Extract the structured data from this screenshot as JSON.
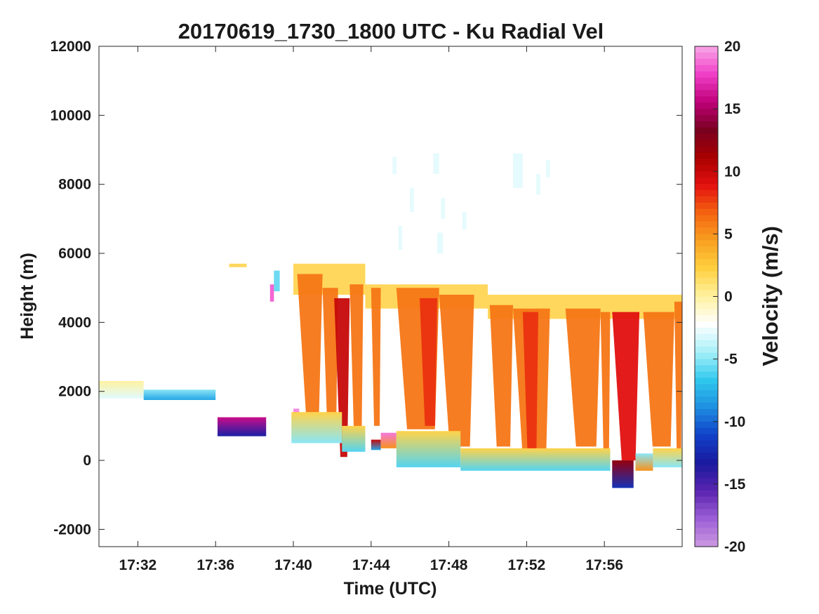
{
  "chart_data": {
    "type": "heatmap",
    "title": "20170619_1730_1800 UTC - Ku Radial Vel",
    "xlabel": "Time (UTC)",
    "ylabel": "Height (m)",
    "x_ticks": [
      "17:32",
      "17:36",
      "17:40",
      "17:44",
      "17:48",
      "17:52",
      "17:56"
    ],
    "x_tick_minutes": [
      2,
      6,
      10,
      14,
      18,
      22,
      26
    ],
    "xlim_minutes": [
      0,
      30
    ],
    "y_ticks": [
      "12000",
      "10000",
      "8000",
      "6000",
      "4000",
      "2000",
      "0",
      "-2000"
    ],
    "y_tick_values": [
      12000,
      10000,
      8000,
      6000,
      4000,
      2000,
      0,
      -2000
    ],
    "ylim": [
      -2500,
      12000
    ],
    "colorbar": {
      "label": "Velocity (m/s)",
      "range": [
        -20,
        20
      ],
      "ticks": [
        "20",
        "15",
        "10",
        "5",
        "0",
        "-5",
        "-10",
        "-15",
        "-20"
      ],
      "tick_values": [
        20,
        15,
        10,
        5,
        0,
        -5,
        -10,
        -15,
        -20
      ],
      "colors": [
        "#cc99e0",
        "#9c5fd6",
        "#5a24b0",
        "#1a1a9e",
        "#1040c8",
        "#1e8ee0",
        "#30c8ee",
        "#a8f0f8",
        "#ffffff",
        "#fff2a0",
        "#ffd040",
        "#f8a020",
        "#f46410",
        "#e41010",
        "#a80000",
        "#780020",
        "#c0007a",
        "#f040c8",
        "#f8a8e8"
      ]
    },
    "segments": [
      {
        "t0": 0.0,
        "t1": 2.3,
        "bottom": 1800,
        "top": 2300,
        "v_bottom": -3,
        "v_top": 0
      },
      {
        "t0": 2.3,
        "t1": 6.0,
        "bottom": 1750,
        "top": 2050,
        "v_bottom": -8,
        "v_top": -5
      },
      {
        "t0": 6.1,
        "t1": 8.6,
        "bottom": 700,
        "top": 1250,
        "v_bottom": -13,
        "v_top": 16
      },
      {
        "t0": 9.9,
        "t1": 12.5,
        "bottom": 500,
        "top": 1400,
        "v_bottom": -5,
        "v_top": 2
      },
      {
        "t0": 12.5,
        "t1": 13.7,
        "bottom": 250,
        "top": 1000,
        "v_bottom": -6,
        "v_top": 2
      },
      {
        "t0": 14.0,
        "t1": 14.5,
        "bottom": 300,
        "top": 600,
        "v_bottom": -8,
        "v_top": 10
      },
      {
        "t0": 14.5,
        "t1": 15.3,
        "bottom": 350,
        "top": 800,
        "v_bottom": 5,
        "v_top": 19
      },
      {
        "t0": 15.3,
        "t1": 18.6,
        "bottom": -200,
        "top": 850,
        "v_bottom": -6,
        "v_top": 2
      },
      {
        "t0": 18.6,
        "t1": 26.3,
        "bottom": -300,
        "top": 350,
        "v_bottom": -6,
        "v_top": 2
      },
      {
        "t0": 26.4,
        "t1": 27.5,
        "bottom": -800,
        "top": 0,
        "v_bottom": -12,
        "v_top": 12
      },
      {
        "t0": 27.6,
        "t1": 28.5,
        "bottom": -300,
        "top": 200,
        "v_bottom": 5,
        "v_top": -5
      },
      {
        "t0": 28.5,
        "t1": 30.0,
        "bottom": -200,
        "top": 350,
        "v_bottom": -5,
        "v_top": 2
      }
    ],
    "precip_columns": [
      {
        "t0": 10.2,
        "t1": 11.5,
        "bottom": 1300,
        "top": 5400,
        "v": 6,
        "taper": 0.35
      },
      {
        "t0": 11.5,
        "t1": 12.3,
        "bottom": 1000,
        "top": 5000,
        "v": 6,
        "taper": 0.3
      },
      {
        "t0": 12.1,
        "t1": 12.9,
        "bottom": 100,
        "top": 4700,
        "v": 10,
        "taper": 0.4
      },
      {
        "t0": 12.9,
        "t1": 13.6,
        "bottom": 900,
        "top": 5100,
        "v": 6,
        "taper": 0.3
      },
      {
        "t0": 14.0,
        "t1": 14.5,
        "bottom": 1000,
        "top": 5000,
        "v": 6,
        "taper": 0.3
      },
      {
        "t0": 15.3,
        "t1": 17.5,
        "bottom": 900,
        "top": 5000,
        "v": 6,
        "taper": 0.25
      },
      {
        "t0": 17.5,
        "t1": 19.3,
        "bottom": 400,
        "top": 4800,
        "v": 6,
        "taper": 0.3
      },
      {
        "t0": 16.5,
        "t1": 17.4,
        "bottom": 1000,
        "top": 4700,
        "v": 8,
        "taper": 0.3
      },
      {
        "t0": 20.1,
        "t1": 21.3,
        "bottom": 400,
        "top": 4500,
        "v": 6,
        "taper": 0.3
      },
      {
        "t0": 21.3,
        "t1": 23.2,
        "bottom": 300,
        "top": 4400,
        "v": 6,
        "taper": 0.25
      },
      {
        "t0": 21.8,
        "t1": 22.6,
        "bottom": 300,
        "top": 4300,
        "v": 8,
        "taper": 0.3
      },
      {
        "t0": 24.0,
        "t1": 25.8,
        "bottom": 400,
        "top": 4400,
        "v": 6,
        "taper": 0.3
      },
      {
        "t0": 25.8,
        "t1": 26.3,
        "bottom": 300,
        "top": 4300,
        "v": 6,
        "taper": 0.3
      },
      {
        "t0": 26.4,
        "t1": 27.8,
        "bottom": 0,
        "top": 4300,
        "v": 9,
        "taper": 0.35
      },
      {
        "t0": 28.0,
        "t1": 29.6,
        "bottom": 400,
        "top": 4300,
        "v": 6,
        "taper": 0.3
      },
      {
        "t0": 29.6,
        "t1": 30.0,
        "bottom": 300,
        "top": 4600,
        "v": 6,
        "taper": 0.3
      }
    ],
    "cloud_top_layer": [
      {
        "t0": 10.0,
        "t1": 13.7,
        "bottom": 4800,
        "top": 5700,
        "v": 2
      },
      {
        "t0": 13.7,
        "t1": 20.0,
        "bottom": 4400,
        "top": 5100,
        "v": 2
      },
      {
        "t0": 20.0,
        "t1": 30.0,
        "bottom": 4100,
        "top": 4800,
        "v": 2
      },
      {
        "t0": 6.7,
        "t1": 7.6,
        "bottom": 5600,
        "top": 5700,
        "v": 2
      }
    ],
    "high_echoes": [
      {
        "t0": 15.1,
        "t1": 15.3,
        "bottom": 8300,
        "top": 8800,
        "v": -3
      },
      {
        "t0": 15.4,
        "t1": 15.6,
        "bottom": 6100,
        "top": 6800,
        "v": -3
      },
      {
        "t0": 16.0,
        "t1": 16.2,
        "bottom": 7200,
        "top": 7900,
        "v": -3
      },
      {
        "t0": 17.2,
        "t1": 17.5,
        "bottom": 8300,
        "top": 8900,
        "v": -3
      },
      {
        "t0": 17.4,
        "t1": 17.7,
        "bottom": 6000,
        "top": 6600,
        "v": -3
      },
      {
        "t0": 17.6,
        "t1": 17.8,
        "bottom": 7000,
        "top": 7600,
        "v": -3
      },
      {
        "t0": 18.7,
        "t1": 18.9,
        "bottom": 6700,
        "top": 7200,
        "v": -3
      },
      {
        "t0": 21.3,
        "t1": 21.8,
        "bottom": 7900,
        "top": 8900,
        "v": -3
      },
      {
        "t0": 22.5,
        "t1": 22.7,
        "bottom": 7700,
        "top": 8300,
        "v": -3
      },
      {
        "t0": 23.0,
        "t1": 23.2,
        "bottom": 8200,
        "top": 8700,
        "v": -3
      },
      {
        "t0": 9.0,
        "t1": 9.3,
        "bottom": 4900,
        "top": 5500,
        "v": -6
      },
      {
        "t0": 8.8,
        "t1": 9.0,
        "bottom": 4600,
        "top": 5100,
        "v": 18
      },
      {
        "t0": 10.0,
        "t1": 10.3,
        "bottom": 1200,
        "top": 1500,
        "v": 19
      }
    ]
  }
}
